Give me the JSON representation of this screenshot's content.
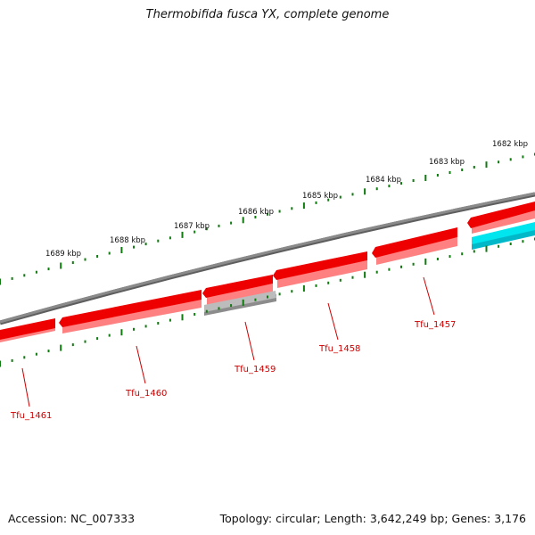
{
  "title": "Thermobifida fusca YX, complete genome",
  "footer": {
    "accession": "Accession: NC_007333",
    "summary": "Topology: circular; Length: 3,642,249 bp; Genes: 3,176"
  },
  "colors": {
    "backbone": "#7a7a7a",
    "gene_red": "#ee0000",
    "gene_red_light": "#ff8080",
    "gene_gray": "#a8a8a8",
    "gene_cyan": "#00e5ee",
    "tick_green": "#117a11",
    "label_red": "#cc0000"
  },
  "scale_ticks": [
    {
      "label": "1682 kbp"
    },
    {
      "label": "1683 kbp"
    },
    {
      "label": "1684 kbp"
    },
    {
      "label": "1685 kbp"
    },
    {
      "label": "1686 kbp"
    },
    {
      "label": "1687 kbp"
    },
    {
      "label": "1688 kbp"
    },
    {
      "label": "1689 kbp"
    }
  ],
  "genes": [
    {
      "id": "Tfu_1457",
      "label": "Tfu_1457",
      "strand": "reverse",
      "color": "red"
    },
    {
      "id": "Tfu_1458",
      "label": "Tfu_1458",
      "strand": "reverse",
      "color": "red"
    },
    {
      "id": "Tfu_1459",
      "label": "Tfu_1459",
      "strand": "reverse",
      "color": "gray"
    },
    {
      "id": "Tfu_1460",
      "label": "Tfu_1460",
      "strand": "reverse",
      "color": "red"
    },
    {
      "id": "Tfu_1461",
      "label": "Tfu_1461",
      "strand": "reverse",
      "color": "red"
    }
  ]
}
